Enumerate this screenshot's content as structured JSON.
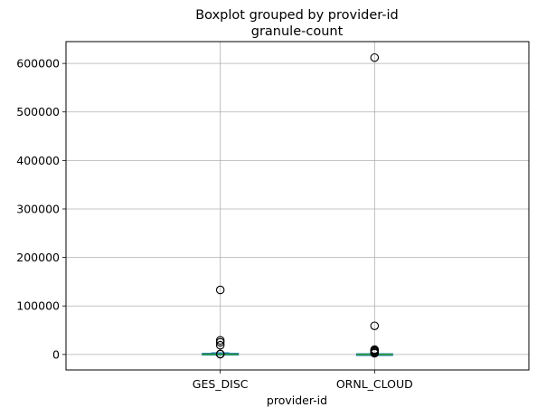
{
  "chart_data": {
    "type": "boxplot",
    "title": "Boxplot grouped by provider-id",
    "subtitle": "granule-count",
    "xlabel": "provider-id",
    "ylabel": "",
    "categories": [
      "GES_DISC",
      "ORNL_CLOUD"
    ],
    "ylim": [
      -32000,
      645000
    ],
    "yticks": [
      0,
      100000,
      200000,
      300000,
      400000,
      500000,
      600000
    ],
    "ytick_labels": [
      "0",
      "100000",
      "200000",
      "300000",
      "400000",
      "500000",
      "600000"
    ],
    "grid": true,
    "boxes": [
      {
        "category": "GES_DISC",
        "whisker_low": 0,
        "q1": 50,
        "median": 300,
        "q3": 1500,
        "whisker_high": 3500,
        "outliers": [
          133000,
          29000,
          25000,
          19000,
          1000,
          500
        ]
      },
      {
        "category": "ORNL_CLOUD",
        "whisker_low": 0,
        "q1": 10,
        "median": 80,
        "q3": 600,
        "whisker_high": 1500,
        "outliers": [
          612000,
          59000,
          10000,
          8000,
          6000,
          4000,
          2500
        ]
      }
    ],
    "colors": {
      "box": "#1f77b4",
      "median": "#2ca02c",
      "whisker": "#1f77b4",
      "outlier_edge": "#000000",
      "grid": "#b0b0b0"
    }
  }
}
